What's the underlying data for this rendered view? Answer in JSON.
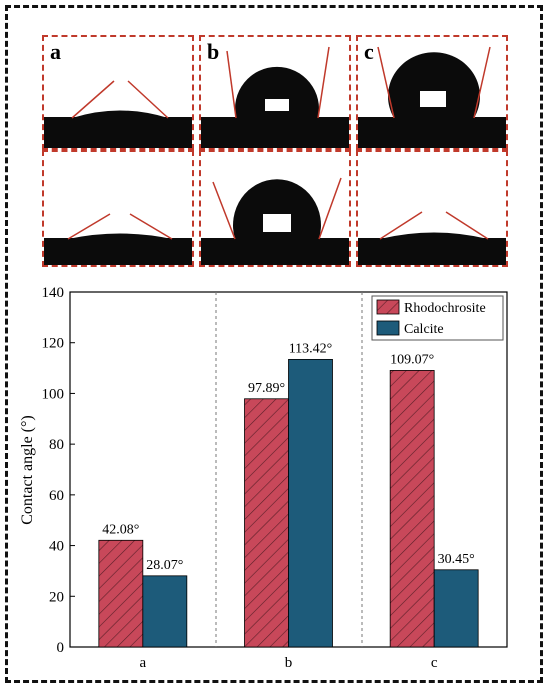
{
  "panel_labels": {
    "a": "a",
    "b": "b",
    "c": "c"
  },
  "colors": {
    "rhodochrosite": "#c8485a",
    "calcite": "#1d5b7a",
    "frame_dash": "#c0392b",
    "tangent": "#c0392b"
  },
  "chart_data": {
    "type": "bar",
    "categories": [
      "a",
      "b",
      "c"
    ],
    "ylabel": "Contact angle (°)",
    "xlabel": "",
    "ylim": [
      0,
      140
    ],
    "yticks": [
      "0",
      "20",
      "40",
      "60",
      "80",
      "100",
      "120",
      "140"
    ],
    "series": [
      {
        "name": "Rhodochrosite",
        "values": [
          42.08,
          97.89,
          109.07
        ],
        "labels": [
          "42.08°",
          "97.89°",
          "109.07°"
        ],
        "pattern": "hatched"
      },
      {
        "name": "Calcite",
        "values": [
          28.07,
          113.42,
          30.45
        ],
        "labels": [
          "28.07°",
          "113.42°",
          "30.45°"
        ],
        "pattern": "solid"
      }
    ],
    "legend": "top-right",
    "grid": false
  }
}
